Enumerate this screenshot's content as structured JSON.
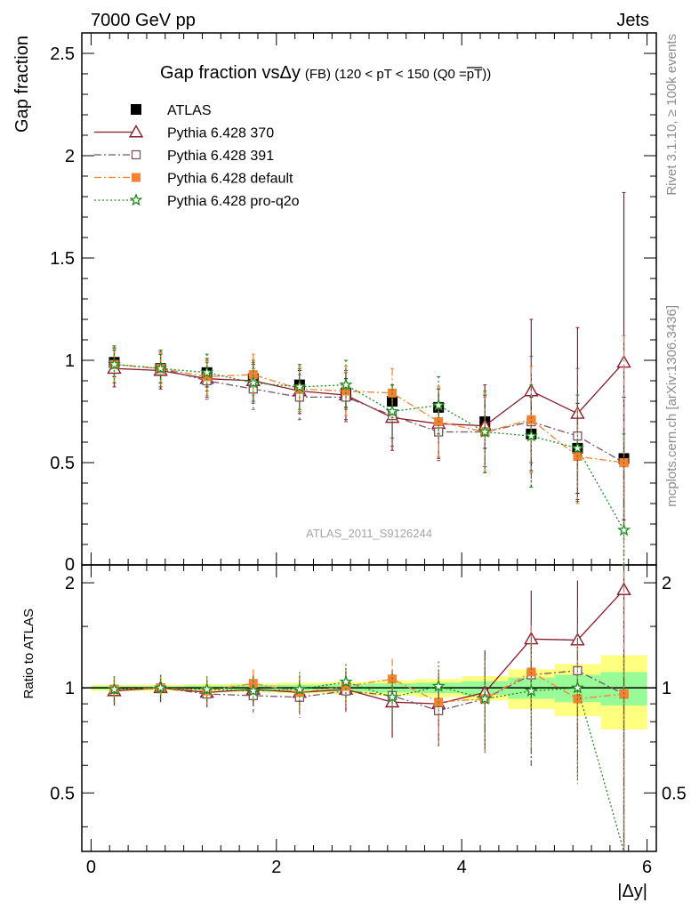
{
  "header": {
    "left": "7000 GeV pp",
    "right": "Jets"
  },
  "side_text": {
    "rivet": "Rivet 3.1.10, ≥ 100k events",
    "mcplots": "mcplots.cern.ch [arXiv:1306.3436]"
  },
  "watermark": "ATLAS_2011_S9126244",
  "chart_data": [
    {
      "type": "scatter",
      "title_main": "Gap fraction vsΔy",
      "title_sub": "(FB) (120 < pT < 150 (Q0 =",
      "title_bar": "pT",
      "title_end": "))",
      "ylabel": "Gap fraction",
      "ylim": [
        0,
        2.6
      ],
      "xlim": [
        -0.1,
        6.1
      ],
      "yticks": [
        0.5,
        1,
        1.5,
        2,
        2.5
      ],
      "ytick_labels": [
        "0.5",
        "1",
        "1.5",
        "2",
        "2.5"
      ],
      "y_zero_label": "0",
      "legend_position": "top-left",
      "x": [
        0.25,
        0.75,
        1.25,
        1.75,
        2.25,
        2.75,
        3.25,
        3.75,
        4.25,
        4.75,
        5.25,
        5.75
      ],
      "series": [
        {
          "name": "ATLAS",
          "color": "#000000",
          "marker": "square-filled",
          "values": [
            0.99,
            0.96,
            0.94,
            0.91,
            0.88,
            0.84,
            0.8,
            0.77,
            0.7,
            0.64,
            0.57,
            0.52
          ],
          "errors": [
            0.07,
            0.07,
            0.07,
            0.07,
            0.07,
            0.07,
            0.08,
            0.09,
            0.13,
            0.18,
            0.22,
            0.3
          ]
        },
        {
          "name": "Pythia 6.428 370",
          "color": "#8b1a2b",
          "marker": "triangle-open",
          "line": "solid",
          "values": [
            0.96,
            0.95,
            0.91,
            0.9,
            0.85,
            0.83,
            0.72,
            0.69,
            0.68,
            0.85,
            0.74,
            0.99
          ],
          "errors": [
            0.09,
            0.09,
            0.09,
            0.1,
            0.11,
            0.12,
            0.16,
            0.17,
            0.2,
            0.35,
            0.42,
            0.83
          ]
        },
        {
          "name": "Pythia 6.428 391",
          "color": "#7a5563",
          "marker": "square-open",
          "line": "dashdot",
          "values": [
            0.98,
            0.96,
            0.9,
            0.86,
            0.82,
            0.82,
            0.73,
            0.65,
            0.65,
            0.7,
            0.63,
            0.5
          ],
          "errors": [
            0.09,
            0.09,
            0.09,
            0.1,
            0.11,
            0.12,
            0.15,
            0.14,
            0.17,
            0.32,
            0.33,
            0.62
          ]
        },
        {
          "name": "Pythia 6.428 default",
          "color": "#f58231",
          "marker": "square-filled",
          "line": "dashdot",
          "values": [
            0.98,
            0.96,
            0.92,
            0.93,
            0.86,
            0.85,
            0.84,
            0.7,
            0.65,
            0.71,
            0.53,
            0.5
          ],
          "errors": [
            0.09,
            0.09,
            0.09,
            0.1,
            0.11,
            0.12,
            0.12,
            0.17,
            0.19,
            0.26,
            0.23,
            0.62
          ]
        },
        {
          "name": "Pythia 6.428 pro-q2o",
          "color": "#1d8a1d",
          "marker": "star",
          "line": "dotted",
          "values": [
            0.98,
            0.96,
            0.94,
            0.89,
            0.87,
            0.88,
            0.75,
            0.78,
            0.65,
            0.63,
            0.57,
            0.17
          ],
          "errors": [
            0.09,
            0.09,
            0.09,
            0.1,
            0.11,
            0.12,
            0.13,
            0.14,
            0.2,
            0.25,
            0.26,
            0.47
          ]
        }
      ]
    },
    {
      "type": "scatter",
      "ylabel": "Ratio to ATLAS",
      "xlabel": "|Δy|",
      "ylim": [
        0.34,
        2.25
      ],
      "xlim": [
        -0.1,
        6.1
      ],
      "xticks": [
        0,
        2,
        4,
        6
      ],
      "xtick_labels": [
        "0",
        "2",
        "4",
        "6"
      ],
      "yticks": [
        0.5,
        1,
        2
      ],
      "ytick_labels": [
        "0.5",
        "1",
        "2"
      ],
      "bands": {
        "bin_edges": [
          0,
          0.5,
          1.0,
          1.5,
          2.0,
          2.5,
          3.0,
          3.5,
          4.0,
          4.5,
          5.0,
          5.5,
          6.0
        ],
        "stat_halfwidth": [
          0.01,
          0.01,
          0.015,
          0.02,
          0.02,
          0.025,
          0.03,
          0.035,
          0.045,
          0.07,
          0.09,
          0.11
        ],
        "total_halfwidth": [
          0.02,
          0.02,
          0.025,
          0.03,
          0.035,
          0.04,
          0.05,
          0.06,
          0.08,
          0.13,
          0.17,
          0.24
        ],
        "stat_color": "#98fb98",
        "total_color": "#ffff80"
      },
      "x": [
        0.25,
        0.75,
        1.25,
        1.75,
        2.25,
        2.75,
        3.25,
        3.75,
        4.25,
        4.75,
        5.25,
        5.75
      ],
      "series": [
        {
          "name": "Pythia 6.428 370",
          "values": [
            0.98,
            1.0,
            0.97,
            0.99,
            0.97,
            0.99,
            0.91,
            0.9,
            0.97,
            1.38,
            1.37,
            1.91
          ],
          "errors": [
            0.09,
            0.09,
            0.09,
            0.1,
            0.12,
            0.13,
            0.19,
            0.22,
            0.31,
            0.52,
            0.66,
            1.6
          ]
        },
        {
          "name": "Pythia 6.428 391",
          "values": [
            0.99,
            1.0,
            0.96,
            0.95,
            0.94,
            0.98,
            0.95,
            0.86,
            0.93,
            1.09,
            1.12,
            0.96
          ],
          "errors": [
            0.09,
            0.09,
            0.09,
            0.1,
            0.12,
            0.13,
            0.18,
            0.18,
            0.24,
            0.49,
            0.56,
            1.2
          ]
        },
        {
          "name": "Pythia 6.428 default",
          "values": [
            0.99,
            1.0,
            0.98,
            1.03,
            0.97,
            1.01,
            1.06,
            0.91,
            0.93,
            1.11,
            0.93,
            0.96
          ],
          "errors": [
            0.09,
            0.09,
            0.09,
            0.1,
            0.12,
            0.13,
            0.15,
            0.22,
            0.27,
            0.4,
            0.4,
            1.2
          ]
        },
        {
          "name": "Pythia 6.428 pro-q2o",
          "values": [
            0.99,
            1.0,
            0.99,
            0.98,
            0.99,
            1.04,
            0.94,
            1.01,
            0.93,
            0.98,
            1.0,
            0.33
          ],
          "errors": [
            0.09,
            0.09,
            0.09,
            0.1,
            0.12,
            0.13,
            0.16,
            0.18,
            0.28,
            0.39,
            0.46,
            0.9
          ]
        }
      ]
    }
  ]
}
